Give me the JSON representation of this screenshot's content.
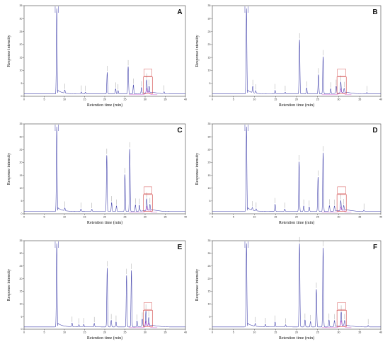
{
  "chart_data": [
    {
      "type": "line",
      "panel_label": "A",
      "xlabel": "Retention time (min)",
      "ylabel": "Response intensity",
      "xlim": [
        0,
        40
      ],
      "ylim": [
        0,
        35
      ],
      "x_ticks": [
        "0",
        "5",
        "10",
        "15",
        "20",
        "25",
        "30",
        "35",
        "40"
      ],
      "y_ticks": [
        "0",
        "5",
        "10",
        "15",
        "20",
        "25",
        "30",
        "35"
      ],
      "colors": {
        "trace": "#3a3aa8",
        "trace2": "#cc33cc",
        "box": "#d04040"
      },
      "peaks": [
        {
          "rt": 8.1,
          "h": 33
        },
        {
          "rt": 10.1,
          "h": 1.2
        },
        {
          "rt": 14.2,
          "h": 0.8
        },
        {
          "rt": 15.2,
          "h": 0.7
        },
        {
          "rt": 20.6,
          "h": 8.4
        },
        {
          "rt": 22.7,
          "h": 2.0
        },
        {
          "rt": 23.3,
          "h": 1.3
        },
        {
          "rt": 25.8,
          "h": 10.6
        },
        {
          "rt": 27.1,
          "h": 3.5
        },
        {
          "rt": 29.1,
          "h": 2.3
        },
        {
          "rt": 30.4,
          "h": 5.0
        },
        {
          "rt": 31.0,
          "h": 2.5
        },
        {
          "rt": 34.7,
          "h": 0.8
        }
      ]
    },
    {
      "type": "line",
      "panel_label": "B",
      "xlabel": "Retention time (min)",
      "ylabel": "Response intensity",
      "xlim": [
        0,
        40
      ],
      "ylim": [
        0,
        35
      ],
      "x_ticks": [
        "0",
        "5",
        "10",
        "15",
        "20",
        "25",
        "30",
        "35",
        "40"
      ],
      "y_ticks": [
        "0",
        "5",
        "10",
        "15",
        "20",
        "25",
        "30",
        "35"
      ],
      "colors": {
        "trace": "#3a3aa8",
        "trace2": "#cc33cc",
        "box": "#d04040"
      },
      "peaks": [
        {
          "rt": 8.1,
          "h": 33
        },
        {
          "rt": 9.6,
          "h": 2.5
        },
        {
          "rt": 10.3,
          "h": 1.0
        },
        {
          "rt": 14.9,
          "h": 1.4
        },
        {
          "rt": 17.3,
          "h": 0.7
        },
        {
          "rt": 20.7,
          "h": 21.0
        },
        {
          "rt": 22.4,
          "h": 2.4
        },
        {
          "rt": 25.2,
          "h": 7.5
        },
        {
          "rt": 26.3,
          "h": 14.5
        },
        {
          "rt": 28.1,
          "h": 2.0
        },
        {
          "rt": 29.4,
          "h": 2.8
        },
        {
          "rt": 30.5,
          "h": 4.2
        },
        {
          "rt": 31.3,
          "h": 1.6
        },
        {
          "rt": 36.7,
          "h": 0.6
        }
      ]
    },
    {
      "type": "line",
      "panel_label": "C",
      "xlabel": "Retention time (min)",
      "ylabel": "Response intensity",
      "xlim": [
        0,
        40
      ],
      "ylim": [
        0,
        35
      ],
      "x_ticks": [
        "0",
        "5",
        "10",
        "15",
        "20",
        "25",
        "30",
        "35",
        "40"
      ],
      "y_ticks": [
        "0",
        "5",
        "10",
        "15",
        "20",
        "25",
        "30",
        "35"
      ],
      "colors": {
        "trace": "#3a3aa8",
        "trace2": "#cc33cc",
        "box": "#d04040"
      },
      "peaks": [
        {
          "rt": 8.1,
          "h": 33
        },
        {
          "rt": 10.1,
          "h": 1.1
        },
        {
          "rt": 14.1,
          "h": 1.0
        },
        {
          "rt": 16.8,
          "h": 0.9
        },
        {
          "rt": 20.5,
          "h": 22.0
        },
        {
          "rt": 21.7,
          "h": 3.5
        },
        {
          "rt": 22.9,
          "h": 2.2
        },
        {
          "rt": 25.0,
          "h": 14.5
        },
        {
          "rt": 26.2,
          "h": 24.5
        },
        {
          "rt": 27.6,
          "h": 2.6
        },
        {
          "rt": 28.6,
          "h": 2.4
        },
        {
          "rt": 30.4,
          "h": 4.5
        },
        {
          "rt": 31.2,
          "h": 2.2
        }
      ]
    },
    {
      "type": "line",
      "panel_label": "D",
      "xlabel": "Retention time (min)",
      "ylabel": "Response intensity",
      "xlim": [
        0,
        40
      ],
      "ylim": [
        0,
        35
      ],
      "x_ticks": [
        "0",
        "5",
        "10",
        "15",
        "20",
        "25",
        "30",
        "35",
        "40"
      ],
      "y_ticks": [
        "0",
        "5",
        "10",
        "15",
        "20",
        "25",
        "30",
        "35"
      ],
      "colors": {
        "trace": "#3a3aa8",
        "trace2": "#cc33cc",
        "box": "#d04040"
      },
      "peaks": [
        {
          "rt": 8.1,
          "h": 33
        },
        {
          "rt": 9.5,
          "h": 1.0
        },
        {
          "rt": 10.4,
          "h": 0.8
        },
        {
          "rt": 14.9,
          "h": 2.8
        },
        {
          "rt": 17.2,
          "h": 1.0
        },
        {
          "rt": 20.6,
          "h": 19.5
        },
        {
          "rt": 21.7,
          "h": 2.2
        },
        {
          "rt": 23.0,
          "h": 1.8
        },
        {
          "rt": 25.1,
          "h": 13.5
        },
        {
          "rt": 26.3,
          "h": 23.0
        },
        {
          "rt": 27.8,
          "h": 2.3
        },
        {
          "rt": 29.0,
          "h": 2.0
        },
        {
          "rt": 30.5,
          "h": 3.8
        },
        {
          "rt": 31.2,
          "h": 1.8
        },
        {
          "rt": 36.0,
          "h": 0.6
        }
      ]
    },
    {
      "type": "line",
      "panel_label": "E",
      "xlabel": "Retention time (min)",
      "ylabel": "Response intensity",
      "xlim": [
        0,
        40
      ],
      "ylim": [
        0,
        35
      ],
      "x_ticks": [
        "0",
        "5",
        "10",
        "15",
        "20",
        "25",
        "30",
        "35",
        "40"
      ],
      "y_ticks": [
        "0",
        "5",
        "10",
        "15",
        "20",
        "25",
        "30",
        "35"
      ],
      "colors": {
        "trace": "#3a3aa8",
        "trace2": "#cc33cc",
        "box": "#d04040"
      },
      "peaks": [
        {
          "rt": 8.1,
          "h": 33
        },
        {
          "rt": 11.9,
          "h": 1.5
        },
        {
          "rt": 13.6,
          "h": 0.9
        },
        {
          "rt": 14.8,
          "h": 1.0
        },
        {
          "rt": 17.4,
          "h": 1.4
        },
        {
          "rt": 20.6,
          "h": 23.5
        },
        {
          "rt": 21.6,
          "h": 2.6
        },
        {
          "rt": 22.8,
          "h": 2.0
        },
        {
          "rt": 25.4,
          "h": 20.5
        },
        {
          "rt": 26.6,
          "h": 22.5
        },
        {
          "rt": 28.0,
          "h": 2.4
        },
        {
          "rt": 29.3,
          "h": 3.0
        },
        {
          "rt": 30.2,
          "h": 6.0
        },
        {
          "rt": 30.9,
          "h": 3.2
        }
      ]
    },
    {
      "type": "line",
      "panel_label": "F",
      "xlabel": "Retention time (min)",
      "ylabel": "Response intensity",
      "xlim": [
        0,
        40
      ],
      "ylim": [
        0,
        35
      ],
      "x_ticks": [
        "0",
        "5",
        "10",
        "15",
        "20",
        "25",
        "30",
        "35",
        "40"
      ],
      "y_ticks": [
        "0",
        "5",
        "10",
        "15",
        "20",
        "25",
        "30",
        "35"
      ],
      "colors": {
        "trace": "#3a3aa8",
        "trace2": "#cc33cc",
        "box": "#d04040"
      },
      "peaks": [
        {
          "rt": 8.1,
          "h": 33
        },
        {
          "rt": 10.2,
          "h": 1.1
        },
        {
          "rt": 12.6,
          "h": 1.0
        },
        {
          "rt": 14.9,
          "h": 2.0
        },
        {
          "rt": 17.4,
          "h": 0.9
        },
        {
          "rt": 20.7,
          "h": 33
        },
        {
          "rt": 22.0,
          "h": 2.8
        },
        {
          "rt": 23.3,
          "h": 2.2
        },
        {
          "rt": 24.7,
          "h": 15.0
        },
        {
          "rt": 26.3,
          "h": 31.5
        },
        {
          "rt": 27.7,
          "h": 2.8
        },
        {
          "rt": 29.0,
          "h": 2.4
        },
        {
          "rt": 30.6,
          "h": 5.5
        },
        {
          "rt": 31.4,
          "h": 2.0
        },
        {
          "rt": 37.0,
          "h": 0.6
        }
      ]
    }
  ]
}
